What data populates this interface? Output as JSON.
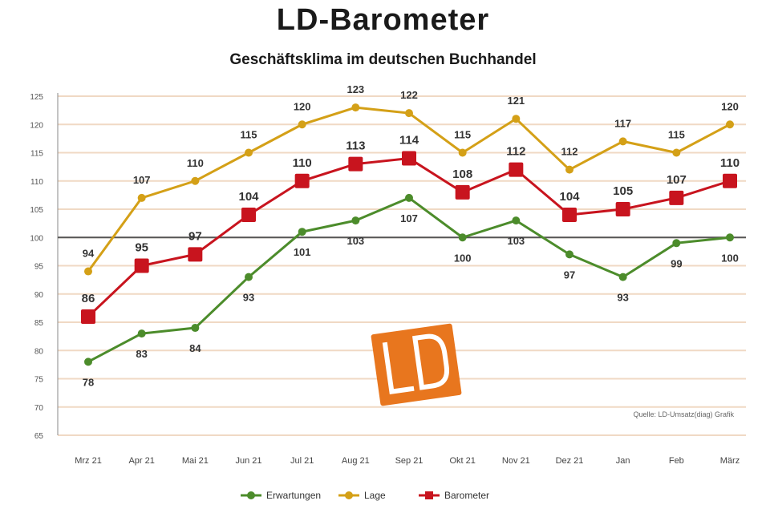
{
  "title": "LD-Barometer",
  "subtitle": "Geschäftsklima im deutschen Buchhandel",
  "source": "Quelle: LD-Umsatz(diag) Grafik",
  "logo": {
    "text": "LD",
    "color": "#e8761e"
  },
  "colors": {
    "erwartungen": "#4c8c2b",
    "lage": "#d4a017",
    "barometer": "#c8141e",
    "grid": "#f0d9c4",
    "baseline": "#555555"
  },
  "chart_data": {
    "type": "line",
    "title": "LD-Barometer",
    "subtitle": "Geschäftsklima im deutschen Buchhandel",
    "categories": [
      "Mrz 21",
      "Apr 21",
      "Mai 21",
      "Jun 21",
      "Jul 21",
      "Aug 21",
      "Sep 21",
      "Okt 21",
      "Nov 21",
      "Dez 21",
      "Jan",
      "Feb",
      "März"
    ],
    "ylim": [
      65,
      125
    ],
    "yticks": [
      65,
      70,
      75,
      80,
      85,
      90,
      95,
      100,
      105,
      110,
      115,
      120,
      125
    ],
    "baseline": 100,
    "grid": true,
    "legend_position": "bottom",
    "series": [
      {
        "name": "Erwartungen",
        "key": "erwartungen",
        "values": [
          78,
          83,
          84,
          93,
          101,
          103,
          107,
          100,
          103,
          97,
          93,
          99,
          100
        ],
        "labels": [
          "78",
          "83",
          "84",
          "93",
          "101",
          "103",
          "107",
          "100",
          "103",
          "97",
          "93",
          "99",
          "100"
        ],
        "label_pos": "below"
      },
      {
        "name": "Lage",
        "key": "lage",
        "values": [
          94,
          107,
          110,
          115,
          120,
          123,
          122,
          115,
          121,
          112,
          117,
          115,
          120
        ],
        "labels": [
          "94",
          "107",
          "110",
          "115",
          "120",
          "123",
          "122",
          "115",
          "121",
          "112",
          "117",
          "115",
          "120"
        ],
        "label_pos": "above"
      },
      {
        "name": "Barometer",
        "key": "barometer",
        "values": [
          86,
          95,
          97,
          104,
          110,
          113,
          114,
          108,
          112,
          104,
          105,
          107,
          110
        ],
        "labels": [
          "86",
          "95",
          "97",
          "104",
          "110",
          "113",
          "114",
          "108",
          "112",
          "104",
          "105",
          "107",
          "110"
        ],
        "label_pos": "above"
      }
    ]
  }
}
